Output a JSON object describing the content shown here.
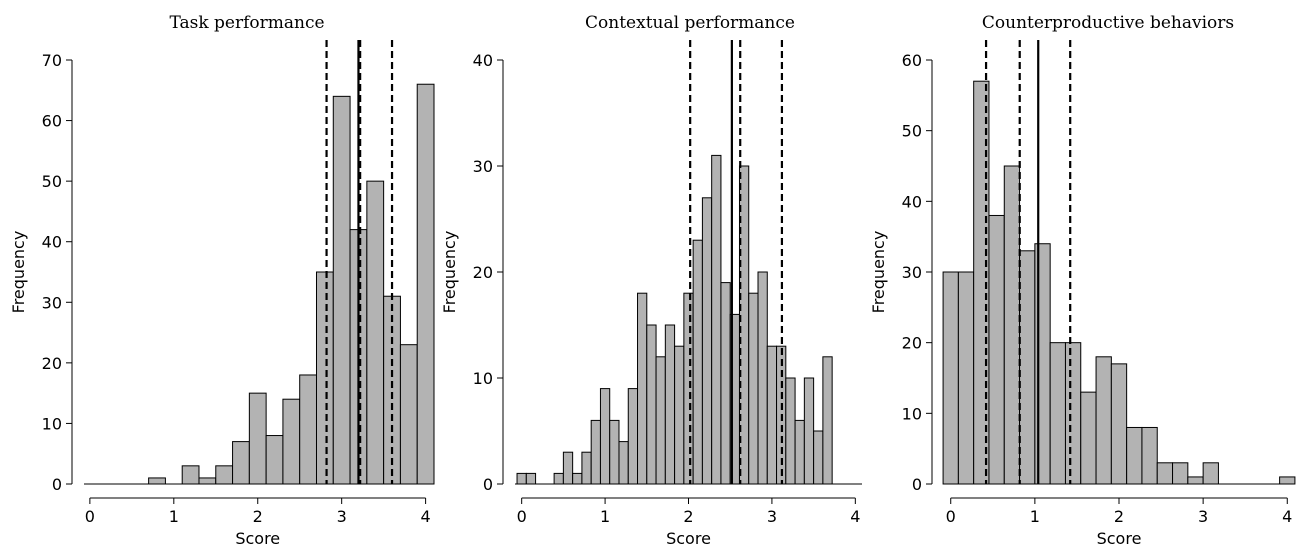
{
  "chart_data": [
    {
      "type": "bar",
      "title": "Task performance",
      "xlabel": "Score",
      "ylabel": "Frequency",
      "xlim": [
        -0.07,
        4.1
      ],
      "ylim": [
        0,
        70
      ],
      "xticks": [
        "0",
        "1",
        "2",
        "3",
        "4"
      ],
      "yticks": [
        "0",
        "10",
        "20",
        "30",
        "40",
        "50",
        "60",
        "70"
      ],
      "bin_width": 0.2,
      "bins_start": [
        0.7,
        0.9,
        1.1,
        1.3,
        1.5,
        1.7,
        1.9,
        2.1,
        2.3,
        2.5,
        2.7,
        2.9,
        3.1,
        3.3,
        3.5,
        3.7,
        3.9
      ],
      "values": [
        1,
        0,
        3,
        1,
        3,
        7,
        15,
        8,
        14,
        18,
        35,
        64,
        42,
        50,
        31,
        23,
        66
      ],
      "vlines": [
        {
          "x": 2.82,
          "style": "dashed"
        },
        {
          "x": 3.2,
          "style": "solid"
        },
        {
          "x": 3.22,
          "style": "dashed"
        },
        {
          "x": 3.6,
          "style": "dashed"
        }
      ]
    },
    {
      "type": "bar",
      "title": "Contextual performance",
      "xlabel": "Score",
      "ylabel": "Frequency",
      "xlim": [
        -0.08,
        4.08
      ],
      "ylim": [
        0,
        40
      ],
      "xticks": [
        "0",
        "1",
        "2",
        "3",
        "4"
      ],
      "yticks": [
        "0",
        "10",
        "20",
        "30",
        "40"
      ],
      "bin_width": 0.1111,
      "bins_start": [
        -0.0556,
        0.0556,
        0.1667,
        0.2778,
        0.3889,
        0.5,
        0.6111,
        0.7222,
        0.8333,
        0.9444,
        1.0556,
        1.1667,
        1.2778,
        1.3889,
        1.5,
        1.6111,
        1.7222,
        1.8333,
        1.9444,
        2.0556,
        2.1667,
        2.2778,
        2.3889,
        2.5,
        2.6111,
        2.7222,
        2.8333,
        2.9444,
        3.0556,
        3.1667,
        3.2778,
        3.3889,
        3.5,
        3.6111,
        3.7222,
        3.8333,
        3.9444
      ],
      "values": [
        1,
        1,
        0,
        0,
        1,
        3,
        1,
        3,
        6,
        9,
        6,
        4,
        9,
        18,
        15,
        12,
        15,
        13,
        18,
        23,
        27,
        31,
        19,
        16,
        30,
        18,
        20,
        13,
        13,
        10,
        6,
        10,
        5,
        12,
        0,
        0,
        0
      ],
      "vlines": [
        {
          "x": 2.02,
          "style": "dashed"
        },
        {
          "x": 2.52,
          "style": "solid"
        },
        {
          "x": 2.62,
          "style": "dashed"
        },
        {
          "x": 3.12,
          "style": "dashed"
        }
      ]
    },
    {
      "type": "bar",
      "title": "Counterproductive behaviors",
      "xlabel": "Score",
      "ylabel": "Frequency",
      "xlim": [
        -0.08,
        4.08
      ],
      "ylim": [
        0,
        60
      ],
      "xticks": [
        "0",
        "1",
        "2",
        "3",
        "4"
      ],
      "yticks": [
        "0",
        "10",
        "20",
        "30",
        "40",
        "50",
        "60"
      ],
      "bin_width": 0.1818,
      "bins_start": [
        -0.0909,
        0.0909,
        0.2727,
        0.4545,
        0.6364,
        0.8182,
        1.0,
        1.1818,
        1.3636,
        1.5455,
        1.7273,
        1.9091,
        2.0909,
        2.2727,
        2.4545,
        2.6364,
        2.8182,
        3.0,
        3.1818,
        3.3636,
        3.5455,
        3.7273,
        3.9091
      ],
      "values": [
        30,
        30,
        57,
        38,
        45,
        33,
        34,
        20,
        20,
        13,
        18,
        17,
        8,
        8,
        3,
        3,
        1,
        3,
        0,
        0,
        0,
        0,
        1
      ],
      "vlines": [
        {
          "x": 0.42,
          "style": "dashed"
        },
        {
          "x": 0.82,
          "style": "dashed"
        },
        {
          "x": 1.04,
          "style": "solid"
        },
        {
          "x": 1.42,
          "style": "dashed"
        }
      ]
    }
  ]
}
